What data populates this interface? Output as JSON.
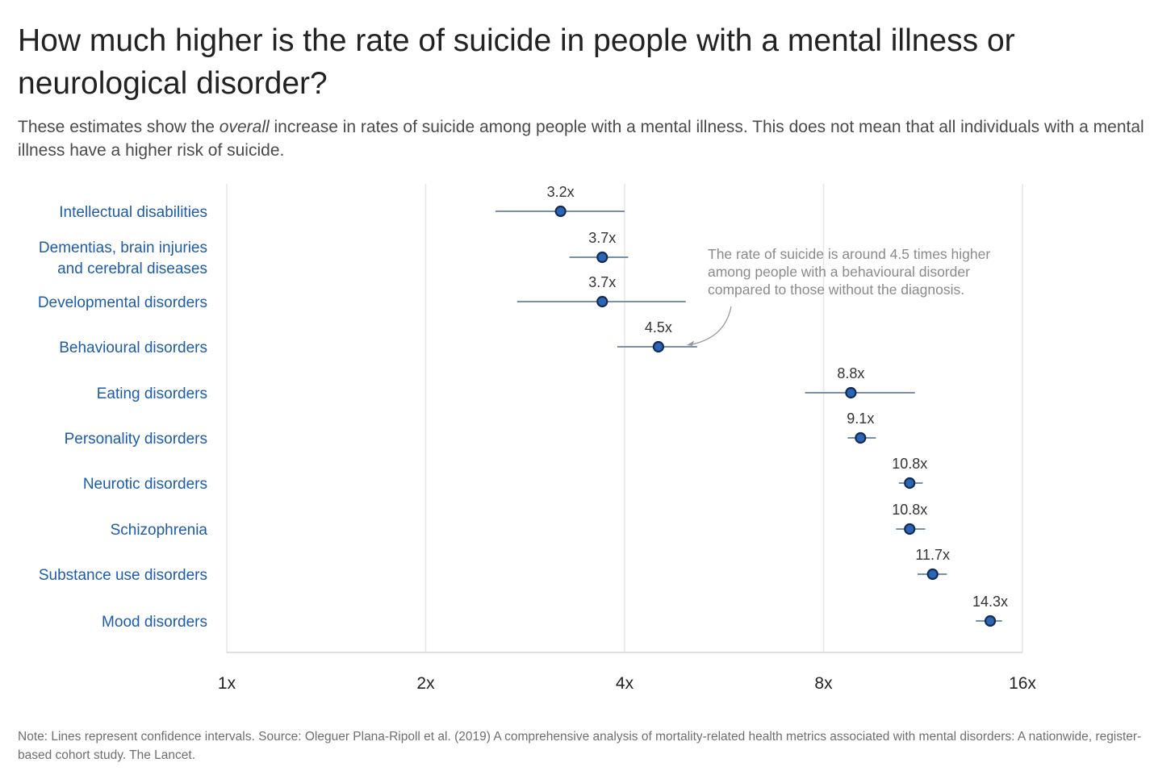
{
  "title": "How much higher is the rate of suicide in people with a mental illness or neurological disorder?",
  "subtitle": {
    "before": "These estimates show the ",
    "emphasis": "overall",
    "after": " increase in rates of suicide among people with a mental illness. This does not mean that all individuals with a mental illness have a higher risk of suicide."
  },
  "note": "Note: Lines represent confidence intervals. Source: Oleguer Plana-Ripoll et al. (2019) A comprehensive analysis of mortality-related health metrics associated with mental disorders: A nationwide, register-based cohort study. The Lancet.",
  "colors": {
    "point_fill": "#2a66b5",
    "point_stroke": "#142c55",
    "ci_line": "#7990ad",
    "category_text": "#1d5ca8",
    "grid": "#e6e6e6"
  },
  "chart_data": {
    "type": "scatter",
    "x_scale": "log2",
    "xlim": [
      1,
      16
    ],
    "x_ticks": [
      1,
      2,
      4,
      8,
      16
    ],
    "x_tick_labels": [
      "1x",
      "2x",
      "4x",
      "8x",
      "16x"
    ],
    "grid": "vertical",
    "categories": [
      [
        "Intellectual disabilities"
      ],
      [
        "Dementias, brain injuries",
        "and cerebral diseases"
      ],
      [
        "Developmental disorders"
      ],
      [
        "Behavioural disorders"
      ],
      [
        "Eating disorders"
      ],
      [
        "Personality disorders"
      ],
      [
        "Neurotic disorders"
      ],
      [
        "Schizophrenia"
      ],
      [
        "Substance use disorders"
      ],
      [
        "Mood disorders"
      ]
    ],
    "values": [
      3.2,
      3.7,
      3.7,
      4.5,
      8.8,
      9.1,
      10.8,
      10.8,
      11.7,
      14.3
    ],
    "value_labels": [
      "3.2x",
      "3.7x",
      "3.7x",
      "4.5x",
      "8.8x",
      "9.1x",
      "10.8x",
      "10.8x",
      "11.7x",
      "14.3x"
    ],
    "ci_low": [
      2.55,
      3.3,
      2.75,
      3.9,
      7.5,
      8.7,
      10.4,
      10.3,
      11.1,
      13.6
    ],
    "ci_high": [
      4.0,
      4.05,
      4.95,
      5.15,
      11.0,
      9.6,
      11.3,
      11.4,
      12.3,
      14.9
    ],
    "annotation": {
      "lines": [
        "The rate of suicide is around 4.5 times higher",
        "among people with a behavioural disorder",
        "compared to those without the diagnosis."
      ],
      "target_index": 3
    }
  }
}
